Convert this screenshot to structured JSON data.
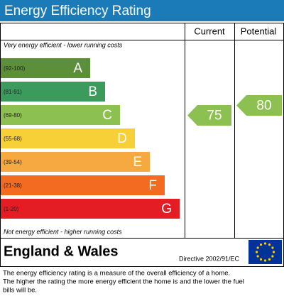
{
  "title": "Energy Efficiency Rating",
  "columns": [
    "Current",
    "Potential"
  ],
  "top_note": "Very energy efficient - lower running costs",
  "bottom_note": "Not energy efficient - higher running costs",
  "bands": [
    {
      "range": "(92-100)",
      "letter": "A",
      "color": "#5b8f3a"
    },
    {
      "range": "(81-91)",
      "letter": "B",
      "color": "#3a9b5c"
    },
    {
      "range": "(69-80)",
      "letter": "C",
      "color": "#8cc152"
    },
    {
      "range": "(55-68)",
      "letter": "D",
      "color": "#f7d038"
    },
    {
      "range": "(39-54)",
      "letter": "E",
      "color": "#f5a940"
    },
    {
      "range": "(21-38)",
      "letter": "F",
      "color": "#f26b21"
    },
    {
      "range": "(1-20)",
      "letter": "G",
      "color": "#e31d23"
    }
  ],
  "current": 75,
  "potential": 80,
  "region": "England & Wales",
  "directive": "Directive 2002/91/EC",
  "footer": [
    "The energy efficiency rating is a measure of the overall efficiency of a home.",
    "The higher the rating the more energy efficient the home is and the lower the fuel",
    "bills will be."
  ]
}
